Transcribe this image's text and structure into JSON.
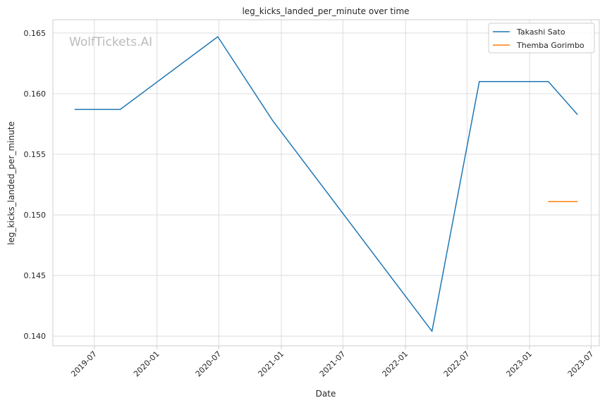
{
  "chart_data": {
    "type": "line",
    "title": "leg_kicks_landed_per_minute over time",
    "xlabel": "Date",
    "ylabel": "leg_kicks_landed_per_minute",
    "watermark": "WolfTickets.AI",
    "x_ticks": [
      "2019-07",
      "2020-01",
      "2020-07",
      "2021-01",
      "2021-07",
      "2022-01",
      "2022-07",
      "2023-01",
      "2023-07"
    ],
    "y_ticks": [
      "0.140",
      "0.145",
      "0.150",
      "0.155",
      "0.160",
      "0.165"
    ],
    "xlim": [
      "2019-03-01",
      "2023-07-25"
    ],
    "ylim": [
      0.1392,
      0.1661
    ],
    "grid": true,
    "legend_position": "top-right",
    "series": [
      {
        "name": "Takashi Sato",
        "color": "#1f77b4",
        "points": [
          {
            "x": "2019-05-05",
            "y": 0.1587
          },
          {
            "x": "2019-09-15",
            "y": 0.1587
          },
          {
            "x": "2020-06-28",
            "y": 0.1647
          },
          {
            "x": "2020-12-06",
            "y": 0.1578
          },
          {
            "x": "2022-03-20",
            "y": 0.1404
          },
          {
            "x": "2022-08-06",
            "y": 0.161
          },
          {
            "x": "2023-02-25",
            "y": 0.161
          },
          {
            "x": "2023-05-21",
            "y": 0.1583
          }
        ]
      },
      {
        "name": "Themba Gorimbo",
        "color": "#ff7f0e",
        "points": [
          {
            "x": "2023-02-25",
            "y": 0.1511
          },
          {
            "x": "2023-05-21",
            "y": 0.1511
          }
        ]
      }
    ]
  }
}
